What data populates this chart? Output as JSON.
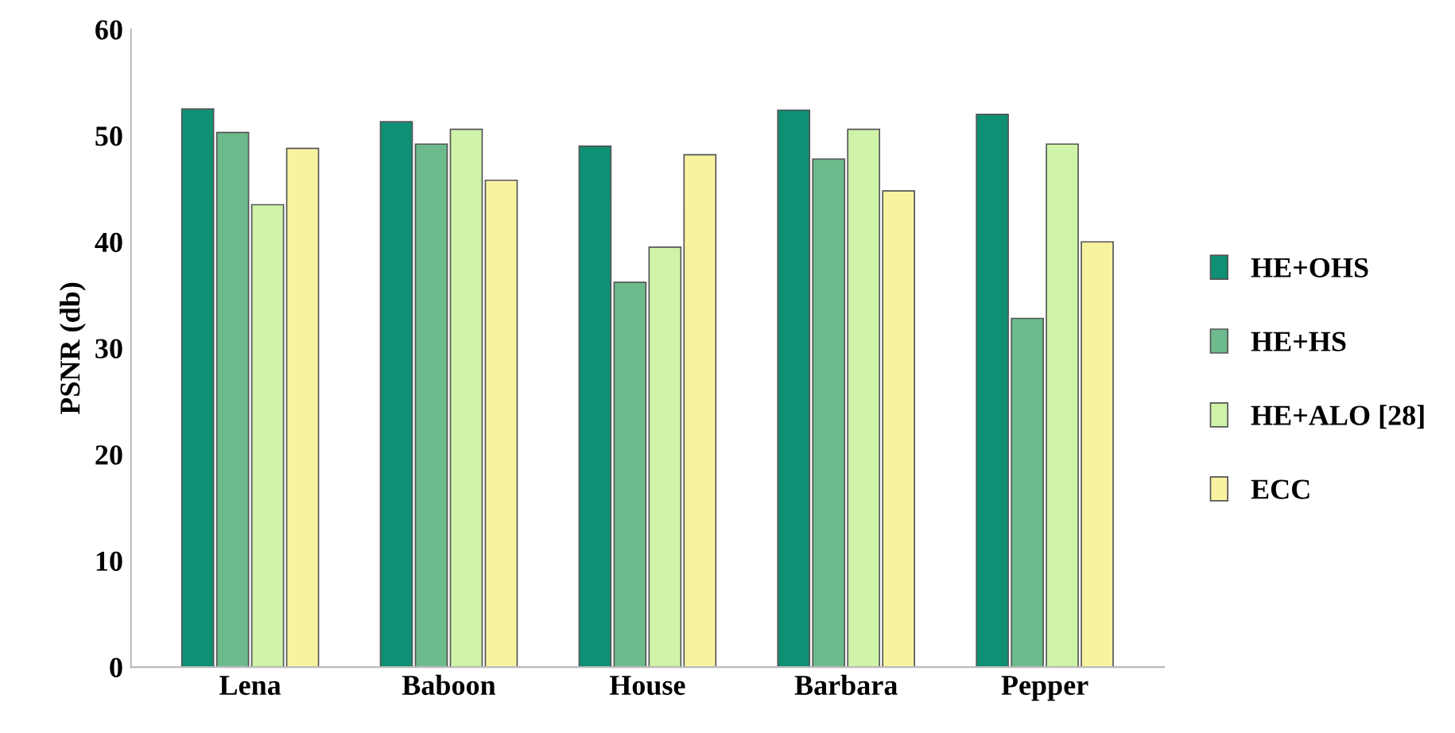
{
  "chart_data": {
    "type": "bar",
    "ylabel": "PSNR (db)",
    "categories": [
      "Lena",
      "Baboon",
      "House",
      "Barbara",
      "Pepper"
    ],
    "series": [
      {
        "name": "HE+OHS",
        "color": "#0f8f74",
        "values": [
          52.5,
          51.3,
          49,
          52.4,
          52
        ]
      },
      {
        "name": "HE+HS",
        "color": "#6dba8c",
        "values": [
          50.3,
          49.2,
          36.2,
          47.8,
          32.8
        ]
      },
      {
        "name": "HE+ALO [28]",
        "color": "#cff3a8",
        "values": [
          43.5,
          50.6,
          39.5,
          50.6,
          49.2
        ]
      },
      {
        "name": "ECC",
        "color": "#f8f3a0",
        "values": [
          48.8,
          45.8,
          48.2,
          44.8,
          40
        ]
      }
    ],
    "ylim": [
      0,
      60
    ],
    "yticks": [
      0,
      10,
      20,
      30,
      40,
      50,
      60
    ],
    "grid": false,
    "legend": "right"
  }
}
